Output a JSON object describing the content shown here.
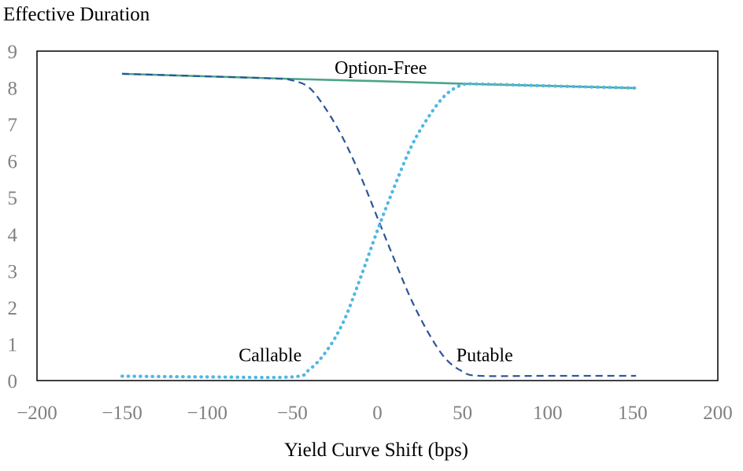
{
  "chart_data": {
    "type": "line",
    "title": "",
    "ylabel": "Effective Duration",
    "xlabel": "Yield Curve Shift (bps)",
    "xlim": [
      -200,
      200
    ],
    "ylim": [
      0,
      9
    ],
    "xticks": [
      -200,
      -150,
      -100,
      -50,
      0,
      50,
      100,
      150,
      200
    ],
    "yticks": [
      0,
      1,
      2,
      3,
      4,
      5,
      6,
      7,
      8,
      9
    ],
    "grid": false,
    "legend": "none",
    "series": [
      {
        "name": "Option-Free",
        "color": "#4aa58a",
        "style": "solid",
        "points": [
          [
            -150,
            8.38
          ],
          [
            -100,
            8.31
          ],
          [
            -50,
            8.24
          ],
          [
            0,
            8.18
          ],
          [
            50,
            8.11
          ],
          [
            100,
            8.05
          ],
          [
            152,
            7.99
          ]
        ]
      },
      {
        "name": "Callable",
        "color": "#2a5597",
        "style": "dashed",
        "points": [
          [
            -150,
            8.38
          ],
          [
            -100,
            8.31
          ],
          [
            -60,
            8.25
          ],
          [
            -50,
            8.2
          ],
          [
            -40,
            8.0
          ],
          [
            -30,
            7.4
          ],
          [
            -20,
            6.6
          ],
          [
            -10,
            5.6
          ],
          [
            0,
            4.45
          ],
          [
            10,
            3.3
          ],
          [
            20,
            2.2
          ],
          [
            30,
            1.3
          ],
          [
            40,
            0.6
          ],
          [
            50,
            0.25
          ],
          [
            60,
            0.13
          ],
          [
            100,
            0.13
          ],
          [
            152,
            0.13
          ]
        ]
      },
      {
        "name": "Putable",
        "color": "#4fb7e5",
        "style": "dotted",
        "points": [
          [
            -150,
            0.12
          ],
          [
            -100,
            0.1
          ],
          [
            -50,
            0.1
          ],
          [
            -40,
            0.3
          ],
          [
            -30,
            0.8
          ],
          [
            -20,
            1.6
          ],
          [
            -10,
            2.8
          ],
          [
            0,
            4.1
          ],
          [
            10,
            5.3
          ],
          [
            20,
            6.4
          ],
          [
            30,
            7.2
          ],
          [
            40,
            7.8
          ],
          [
            50,
            8.08
          ],
          [
            60,
            8.1
          ],
          [
            100,
            8.05
          ],
          [
            152,
            7.99
          ]
        ]
      }
    ],
    "annotations": [
      {
        "text": "Option-Free",
        "x": 2,
        "y": 8.55
      },
      {
        "text": "Callable",
        "x": -63,
        "y": 0.7
      },
      {
        "text": "Putable",
        "x": 63,
        "y": 0.7
      }
    ]
  }
}
